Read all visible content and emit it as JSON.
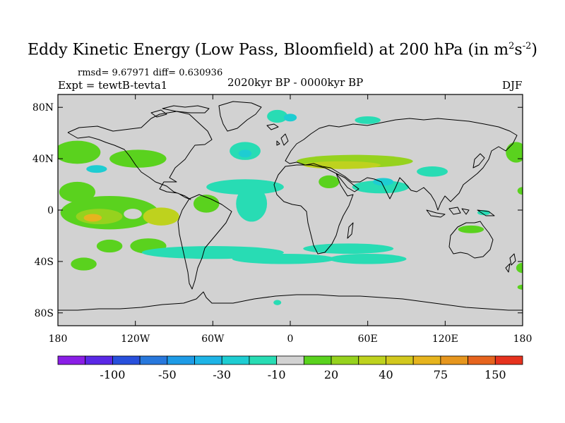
{
  "title": {
    "main": "Eddy Kinetic Energy (Low Pass, Bloomfield) at 200 hPa (in m",
    "sup1": "2",
    "mid": "s",
    "sup2": "-2",
    "close": ")"
  },
  "stats": "rmsd= 9.67971 diff= 0.630936",
  "experiment": "Expt = tewtB-tevta1",
  "period": "2020kyr BP - 0000kyr BP",
  "season": "DJF",
  "map": {
    "projection": "cylindrical equidistant",
    "lon_range": [
      -180,
      180
    ],
    "lat_range": [
      -90,
      90
    ],
    "background_color": "#d2d2d2",
    "x_ticks": [
      {
        "lon": -180,
        "label": "180"
      },
      {
        "lon": -120,
        "label": "120W"
      },
      {
        "lon": -60,
        "label": "60W"
      },
      {
        "lon": 0,
        "label": "0"
      },
      {
        "lon": 60,
        "label": "60E"
      },
      {
        "lon": 120,
        "label": "120E"
      },
      {
        "lon": 180,
        "label": "180"
      }
    ],
    "y_ticks": [
      {
        "lat": 80,
        "label": "80N"
      },
      {
        "lat": 40,
        "label": "40N"
      },
      {
        "lat": 0,
        "label": "0"
      },
      {
        "lat": -40,
        "label": "40S"
      },
      {
        "lat": -80,
        "label": "80S"
      }
    ]
  },
  "colorbar": {
    "colors": [
      "#8a1ee6",
      "#5a28e6",
      "#2850dc",
      "#2878dc",
      "#1e9be6",
      "#1eb4e6",
      "#1ecdd2",
      "#28dcb4",
      "#d2d2d2",
      "#5ad21e",
      "#96d21e",
      "#bed21e",
      "#d2c81e",
      "#e6b41e",
      "#e6961e",
      "#e6641e",
      "#e6321e"
    ],
    "labels": [
      {
        "after_index": 1,
        "text": "-100"
      },
      {
        "after_index": 3,
        "text": "-50"
      },
      {
        "after_index": 5,
        "text": "-30"
      },
      {
        "after_index": 7,
        "text": "-10"
      },
      {
        "after_index": 9,
        "text": "20"
      },
      {
        "after_index": 11,
        "text": "40"
      },
      {
        "after_index": 13,
        "text": "75"
      },
      {
        "after_index": 15,
        "text": "150"
      }
    ]
  },
  "field_blobs": [
    {
      "lon": -165,
      "lat": 45,
      "rlon": 18,
      "rlat": 9,
      "color": "#5ad21e"
    },
    {
      "lon": -118,
      "lat": 40,
      "rlon": 22,
      "rlat": 7,
      "color": "#5ad21e"
    },
    {
      "lon": -150,
      "lat": 32,
      "rlon": 8,
      "rlat": 3,
      "color": "#1ecdd2"
    },
    {
      "lon": -165,
      "lat": 14,
      "rlon": 14,
      "rlat": 8,
      "color": "#5ad21e"
    },
    {
      "lon": -140,
      "lat": -2,
      "rlon": 38,
      "rlat": 13,
      "color": "#5ad21e"
    },
    {
      "lon": -148,
      "lat": -5,
      "rlon": 18,
      "rlat": 6,
      "color": "#96d21e"
    },
    {
      "lon": -153,
      "lat": -6,
      "rlon": 7,
      "rlat": 3,
      "color": "#e6b41e"
    },
    {
      "lon": -122,
      "lat": -3,
      "rlon": 7,
      "rlat": 4,
      "color": "#d2d2d2"
    },
    {
      "lon": -100,
      "lat": -5,
      "rlon": 14,
      "rlat": 7,
      "color": "#bed21e"
    },
    {
      "lon": -65,
      "lat": 5,
      "rlon": 10,
      "rlat": 7,
      "color": "#5ad21e"
    },
    {
      "lon": -140,
      "lat": -28,
      "rlon": 10,
      "rlat": 5,
      "color": "#5ad21e"
    },
    {
      "lon": -110,
      "lat": -28,
      "rlon": 14,
      "rlat": 6,
      "color": "#5ad21e"
    },
    {
      "lon": -160,
      "lat": -42,
      "rlon": 10,
      "rlat": 5,
      "color": "#5ad21e"
    },
    {
      "lon": -60,
      "lat": -33,
      "rlon": 55,
      "rlat": 5,
      "color": "#28dcb4"
    },
    {
      "lon": -5,
      "lat": -38,
      "rlon": 40,
      "rlat": 4,
      "color": "#28dcb4"
    },
    {
      "lon": 45,
      "lat": -30,
      "rlon": 35,
      "rlat": 4,
      "color": "#28dcb4"
    },
    {
      "lon": 60,
      "lat": -38,
      "rlon": 30,
      "rlat": 4,
      "color": "#28dcb4"
    },
    {
      "lon": -35,
      "lat": 46,
      "rlon": 12,
      "rlat": 7,
      "color": "#28dcb4"
    },
    {
      "lon": -35,
      "lat": 44,
      "rlon": 5,
      "rlat": 3,
      "color": "#1ecdd2"
    },
    {
      "lon": -35,
      "lat": 18,
      "rlon": 30,
      "rlat": 6,
      "color": "#28dcb4"
    },
    {
      "lon": -30,
      "lat": 5,
      "rlon": 12,
      "rlat": 14,
      "color": "#28dcb4"
    },
    {
      "lon": -10,
      "lat": 73,
      "rlon": 8,
      "rlat": 5,
      "color": "#28dcb4"
    },
    {
      "lon": 0,
      "lat": 72,
      "rlon": 5,
      "rlat": 3,
      "color": "#1ecdd2"
    },
    {
      "lon": 60,
      "lat": 70,
      "rlon": 10,
      "rlat": 3,
      "color": "#28dcb4"
    },
    {
      "lon": 50,
      "lat": 38,
      "rlon": 45,
      "rlat": 5,
      "color": "#96d21e"
    },
    {
      "lon": 40,
      "lat": 35,
      "rlon": 30,
      "rlat": 3,
      "color": "#bed21e"
    },
    {
      "lon": 70,
      "lat": 18,
      "rlon": 22,
      "rlat": 5,
      "color": "#28dcb4"
    },
    {
      "lon": 72,
      "lat": 22,
      "rlon": 8,
      "rlat": 3,
      "color": "#1ecdd2"
    },
    {
      "lon": 30,
      "lat": 22,
      "rlon": 8,
      "rlat": 5,
      "color": "#5ad21e"
    },
    {
      "lon": 110,
      "lat": 30,
      "rlon": 12,
      "rlat": 4,
      "color": "#28dcb4"
    },
    {
      "lon": 175,
      "lat": 45,
      "rlon": 8,
      "rlat": 8,
      "color": "#5ad21e"
    },
    {
      "lon": 180,
      "lat": 15,
      "rlon": 4,
      "rlat": 3,
      "color": "#5ad21e"
    },
    {
      "lon": 140,
      "lat": -15,
      "rlon": 10,
      "rlat": 3,
      "color": "#5ad21e"
    },
    {
      "lon": 150,
      "lat": -2,
      "rlon": 5,
      "rlat": 2,
      "color": "#28dcb4"
    },
    {
      "lon": 180,
      "lat": -45,
      "rlon": 5,
      "rlat": 4,
      "color": "#5ad21e"
    },
    {
      "lon": 180,
      "lat": -60,
      "rlon": 4,
      "rlat": 2,
      "color": "#5ad21e"
    },
    {
      "lon": -10,
      "lat": -72,
      "rlon": 3,
      "rlat": 2,
      "color": "#28dcb4"
    }
  ]
}
